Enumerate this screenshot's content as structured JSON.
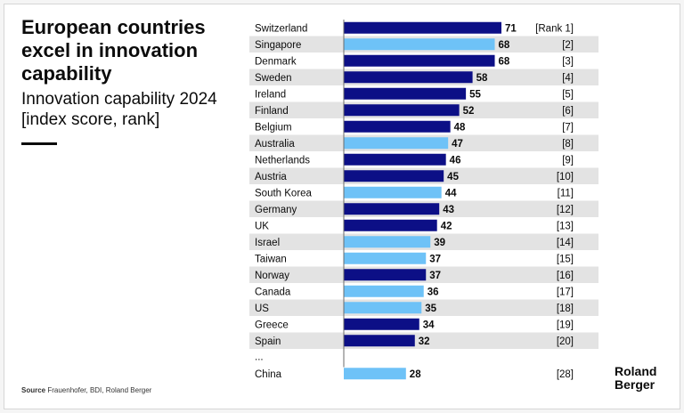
{
  "header": {
    "title": "European countries excel in innovation capability",
    "subtitle": "Innovation capability 2024 [index score, rank]"
  },
  "footer": {
    "source_label": "Source",
    "source_text": "Frauenhofer, BDI, Roland Berger"
  },
  "logo": {
    "line1": "Roland",
    "line2": "Berger"
  },
  "colors": {
    "dark_bar": "#0c0f86",
    "light_bar": "#6ec2f7",
    "stripe": "#e3e3e3",
    "text": "#0b0b0b"
  },
  "chart_data": {
    "type": "bar",
    "orientation": "horizontal",
    "title": "Innovation capability 2024 [index score, rank]",
    "categories": [
      "Switzerland",
      "Singapore",
      "Denmark",
      "Sweden",
      "Ireland",
      "Finland",
      "Belgium",
      "Australia",
      "Netherlands",
      "Austria",
      "South Korea",
      "Germany",
      "UK",
      "Israel",
      "Taiwan",
      "Norway",
      "Canada",
      "US",
      "Greece",
      "Spain",
      "China"
    ],
    "values": [
      71,
      68,
      68,
      58,
      55,
      52,
      48,
      47,
      46,
      45,
      44,
      43,
      42,
      39,
      37,
      37,
      36,
      35,
      34,
      32,
      28
    ],
    "ranks": [
      "[Rank 1]",
      "[2]",
      "[3]",
      "[4]",
      "[5]",
      "[6]",
      "[7]",
      "[8]",
      "[9]",
      "[10]",
      "[11]",
      "[12]",
      "[13]",
      "[14]",
      "[15]",
      "[16]",
      "[17]",
      "[18]",
      "[19]",
      "[20]",
      "[28]"
    ],
    "group": [
      "europe",
      "other",
      "europe",
      "europe",
      "europe",
      "europe",
      "europe",
      "other",
      "europe",
      "europe",
      "other",
      "europe",
      "europe",
      "other",
      "other",
      "europe",
      "other",
      "other",
      "europe",
      "europe",
      "other"
    ],
    "gap_label": "...",
    "xlim": [
      0,
      71
    ],
    "grid": false,
    "legend": "none"
  }
}
